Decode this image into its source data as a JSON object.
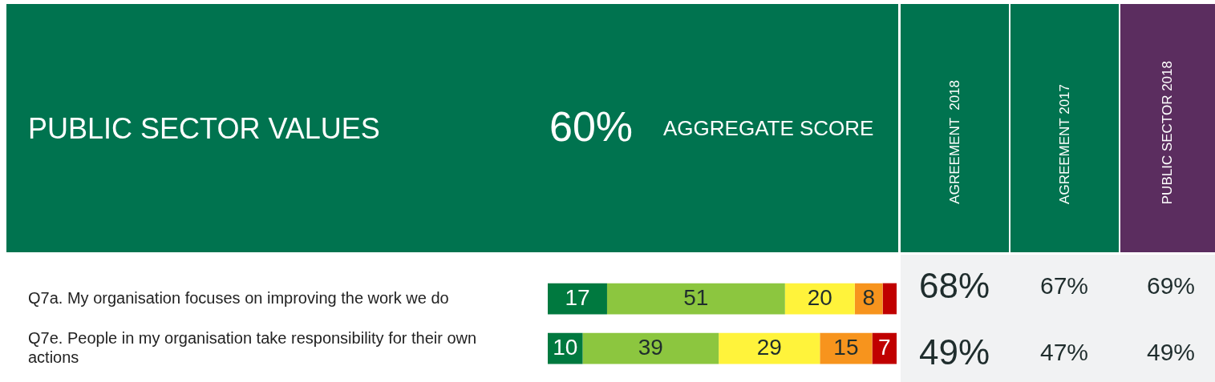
{
  "chart_data": {
    "type": "bar",
    "orientation": "horizontal",
    "stacked": true,
    "title": "PUBLIC SECTOR VALUES",
    "categories": [
      "Q7a. My organisation focuses on improving the work we do",
      "Q7e. People in my organisation take responsibility for their own actions"
    ],
    "series": [
      {
        "color": "#00793f",
        "values": [
          17,
          10
        ],
        "value_labels": [
          "17",
          "10"
        ]
      },
      {
        "color": "#8cc63f",
        "values": [
          51,
          39
        ],
        "value_labels": [
          "51",
          "39"
        ]
      },
      {
        "color": "#fff33b",
        "values": [
          20,
          29
        ],
        "value_labels": [
          "20",
          "29"
        ]
      },
      {
        "color": "#f7941d",
        "values": [
          8,
          15
        ],
        "value_labels": [
          "8",
          "15"
        ]
      },
      {
        "color": "#c00000",
        "values": [
          4,
          7
        ],
        "value_labels": [
          null,
          "7"
        ]
      }
    ],
    "xlim": [
      0,
      100
    ],
    "tick_labels": "y",
    "annotations": [
      "60%",
      "AGGREGATE SCORE",
      "AGREEMENT  2018",
      "AGREEMENT 2017",
      "PUBLIC SECTOR 2018",
      "68%",
      "67%",
      "69%",
      "49%",
      "47%",
      "49%"
    ]
  }
}
